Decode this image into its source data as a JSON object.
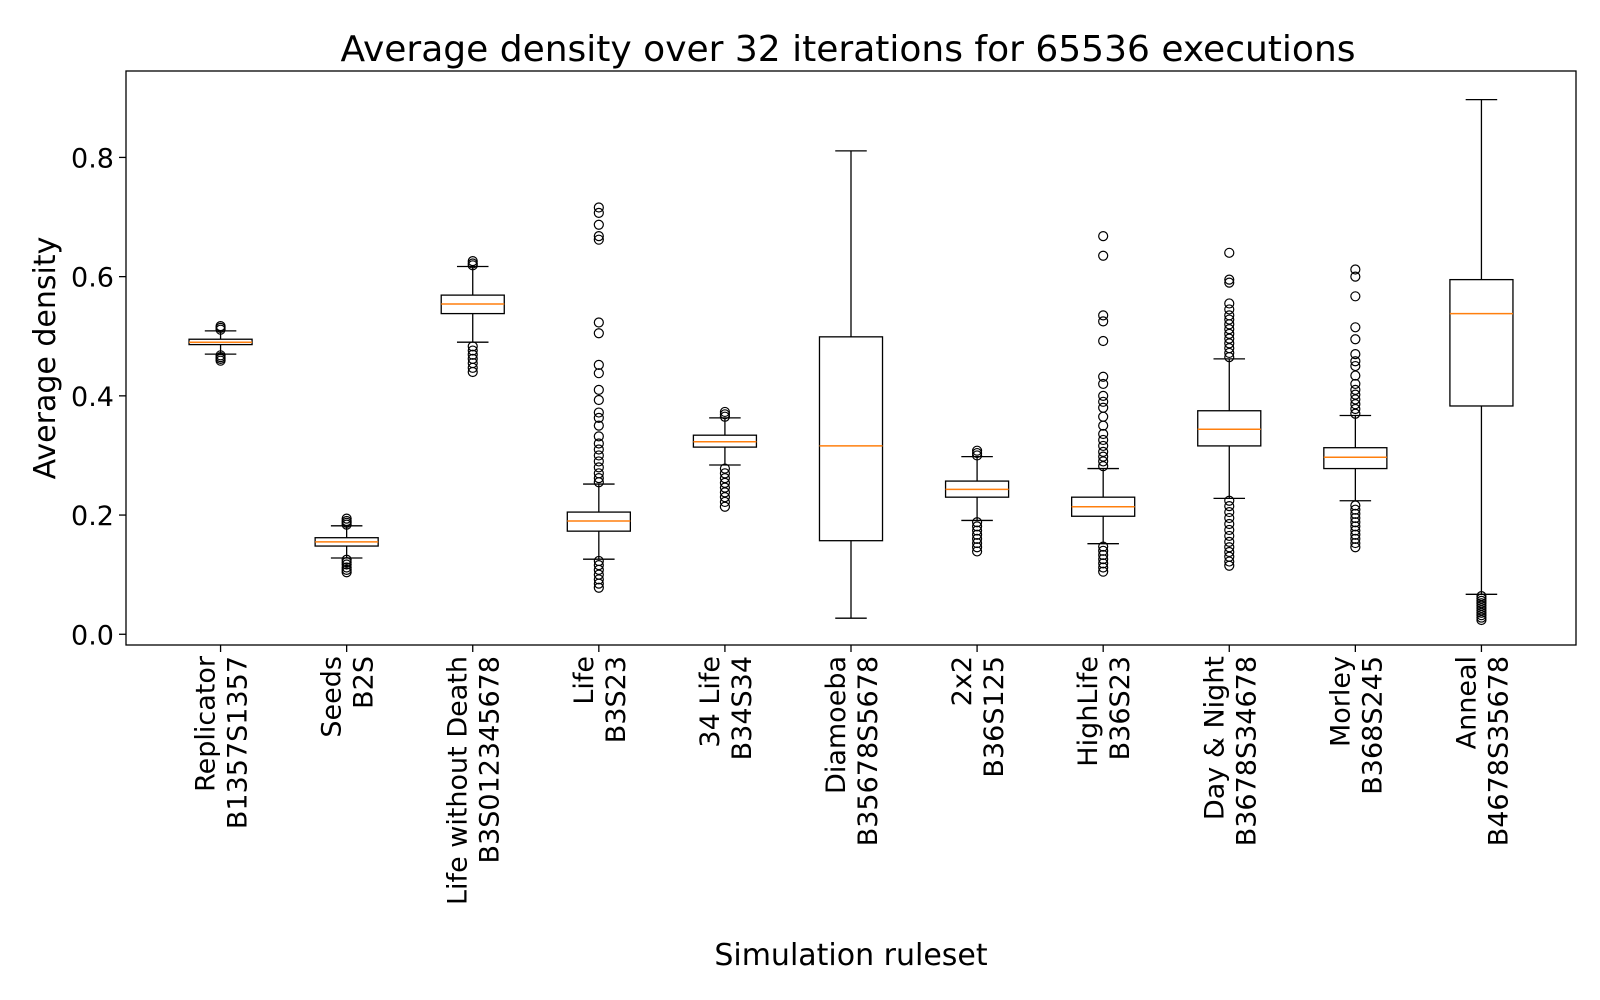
{
  "chart_data": {
    "type": "box",
    "title": "Average density over 32 iterations for 65536 executions",
    "xlabel": "Simulation ruleset",
    "ylabel": "Average density",
    "ylim": [
      -0.018,
      0.945
    ],
    "yticks": [
      "0.0",
      "0.2",
      "0.4",
      "0.6",
      "0.8"
    ],
    "grid": false,
    "colors": {
      "box": "#000000",
      "median": "#ff7f0e"
    },
    "categories": [
      {
        "name": "Replicator",
        "rule": "B1357S1357",
        "whisker_low": 0.47,
        "q1": 0.486,
        "median": 0.49,
        "q3": 0.495,
        "whisker_high": 0.509,
        "outliers": [
          0.459,
          0.462,
          0.465,
          0.468,
          0.511,
          0.514,
          0.517
        ]
      },
      {
        "name": "Seeds",
        "rule": "B2S",
        "whisker_low": 0.128,
        "q1": 0.148,
        "median": 0.155,
        "q3": 0.162,
        "whisker_high": 0.182,
        "outliers": [
          0.104,
          0.108,
          0.112,
          0.117,
          0.121,
          0.125,
          0.184,
          0.187,
          0.19,
          0.194
        ]
      },
      {
        "name": "Life without Death",
        "rule": "B3S012345678",
        "whisker_low": 0.49,
        "q1": 0.538,
        "median": 0.554,
        "q3": 0.569,
        "whisker_high": 0.617,
        "outliers": [
          0.44,
          0.447,
          0.455,
          0.462,
          0.469,
          0.476,
          0.483,
          0.619,
          0.622,
          0.626
        ]
      },
      {
        "name": "Life",
        "rule": "B3S23",
        "whisker_low": 0.126,
        "q1": 0.173,
        "median": 0.19,
        "q3": 0.205,
        "whisker_high": 0.252,
        "outliers": [
          0.078,
          0.085,
          0.092,
          0.1,
          0.108,
          0.116,
          0.123,
          0.255,
          0.262,
          0.27,
          0.28,
          0.29,
          0.3,
          0.31,
          0.32,
          0.332,
          0.35,
          0.363,
          0.372,
          0.393,
          0.41,
          0.438,
          0.452,
          0.505,
          0.523,
          0.662,
          0.668,
          0.687,
          0.707,
          0.716
        ]
      },
      {
        "name": "34 Life",
        "rule": "B34S34",
        "whisker_low": 0.284,
        "q1": 0.314,
        "median": 0.323,
        "q3": 0.334,
        "whisker_high": 0.363,
        "outliers": [
          0.214,
          0.222,
          0.23,
          0.238,
          0.246,
          0.254,
          0.262,
          0.27,
          0.278,
          0.365,
          0.369,
          0.373
        ]
      },
      {
        "name": "Diamoeba",
        "rule": "B35678S5678",
        "whisker_low": 0.027,
        "q1": 0.157,
        "median": 0.316,
        "q3": 0.499,
        "whisker_high": 0.811,
        "outliers": []
      },
      {
        "name": "2x2",
        "rule": "B36S125",
        "whisker_low": 0.191,
        "q1": 0.23,
        "median": 0.243,
        "q3": 0.257,
        "whisker_high": 0.298,
        "outliers": [
          0.139,
          0.146,
          0.153,
          0.16,
          0.167,
          0.174,
          0.181,
          0.188,
          0.3,
          0.304,
          0.308
        ]
      },
      {
        "name": "HighLife",
        "rule": "B36S23",
        "whisker_low": 0.152,
        "q1": 0.198,
        "median": 0.214,
        "q3": 0.23,
        "whisker_high": 0.278,
        "outliers": [
          0.105,
          0.112,
          0.119,
          0.126,
          0.133,
          0.14,
          0.147,
          0.282,
          0.29,
          0.298,
          0.306,
          0.316,
          0.326,
          0.336,
          0.35,
          0.365,
          0.38,
          0.39,
          0.4,
          0.42,
          0.432,
          0.492,
          0.525,
          0.535,
          0.635,
          0.668
        ]
      },
      {
        "name": "Day & Night",
        "rule": "B3678S34678",
        "whisker_low": 0.228,
        "q1": 0.316,
        "median": 0.344,
        "q3": 0.375,
        "whisker_high": 0.462,
        "outliers": [
          0.115,
          0.122,
          0.13,
          0.138,
          0.146,
          0.155,
          0.165,
          0.175,
          0.185,
          0.195,
          0.205,
          0.215,
          0.224,
          0.465,
          0.472,
          0.48,
          0.488,
          0.496,
          0.504,
          0.512,
          0.52,
          0.528,
          0.535,
          0.545,
          0.555,
          0.59,
          0.595,
          0.64
        ]
      },
      {
        "name": "Morley",
        "rule": "B368S245",
        "whisker_low": 0.224,
        "q1": 0.278,
        "median": 0.297,
        "q3": 0.313,
        "whisker_high": 0.367,
        "outliers": [
          0.146,
          0.153,
          0.16,
          0.167,
          0.174,
          0.181,
          0.188,
          0.195,
          0.202,
          0.209,
          0.216,
          0.37,
          0.378,
          0.386,
          0.394,
          0.402,
          0.41,
          0.42,
          0.434,
          0.45,
          0.458,
          0.47,
          0.495,
          0.515,
          0.567,
          0.6,
          0.612
        ]
      },
      {
        "name": "Anneal",
        "rule": "B4678S35678",
        "whisker_low": 0.067,
        "q1": 0.383,
        "median": 0.538,
        "q3": 0.595,
        "whisker_high": 0.897,
        "outliers": [
          0.024,
          0.028,
          0.032,
          0.036,
          0.04,
          0.044,
          0.048,
          0.052,
          0.056,
          0.06,
          0.064
        ]
      }
    ]
  }
}
